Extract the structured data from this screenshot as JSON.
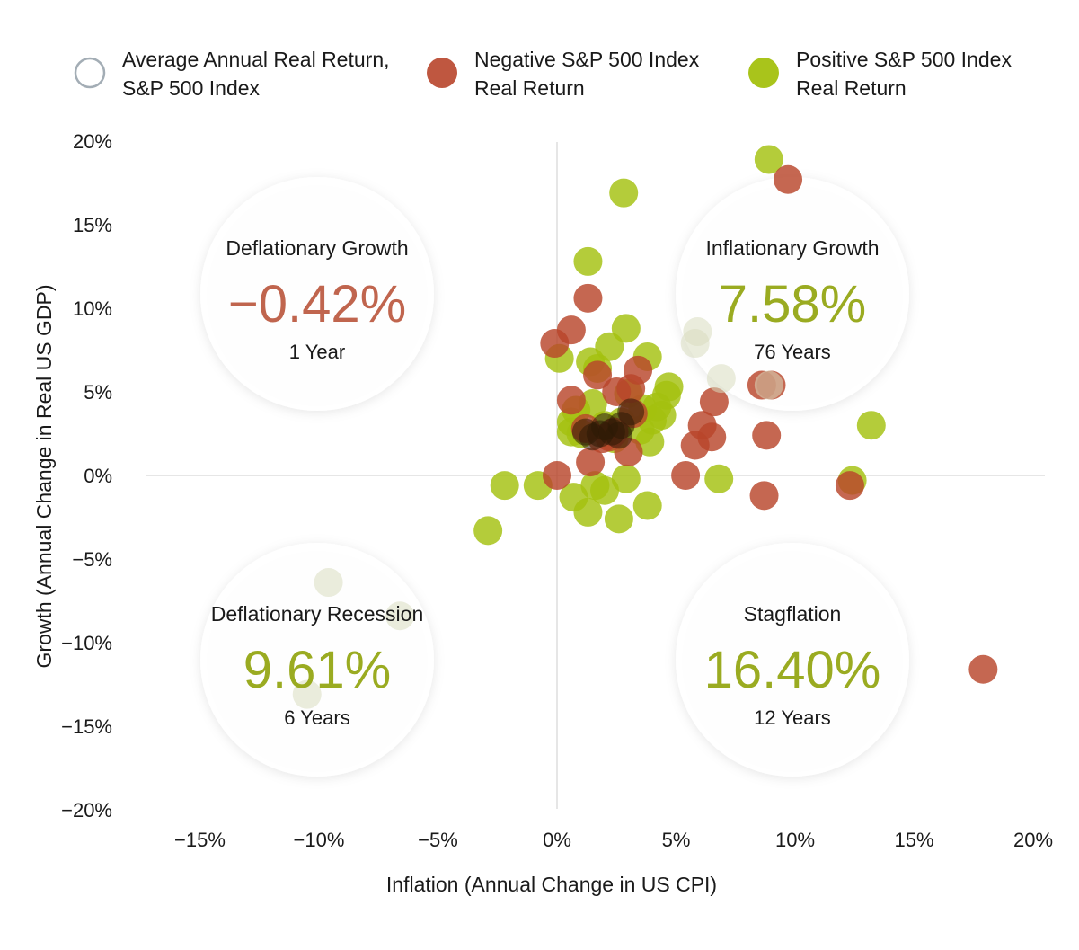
{
  "colors": {
    "negative": "#b8452b",
    "positive": "#a4c10f",
    "average_outline": "#a3adb5",
    "axis": "#cccccc",
    "negative_text": "#c0654e",
    "positive_text": "#9aab21"
  },
  "legend": [
    {
      "line1": "Average Annual Real Return,",
      "line2": "S&P 500 Index",
      "style": "outline"
    },
    {
      "line1": "Negative S&P 500 Index",
      "line2": "Real Return",
      "style": "negative"
    },
    {
      "line1": "Positive S&P 500 Index",
      "line2": "Real Return",
      "style": "positive"
    }
  ],
  "quadrants": [
    {
      "id": "deflationary-growth",
      "title": "Deflationary Growth",
      "value": "−0.42%",
      "years": "1 Year",
      "sign": "negative"
    },
    {
      "id": "inflationary-growth",
      "title": "Inflationary Growth",
      "value": "7.58%",
      "years": "76 Years",
      "sign": "positive"
    },
    {
      "id": "deflationary-recession",
      "title": "Deflationary Recession",
      "value": "9.61%",
      "years": "6 Years",
      "sign": "positive"
    },
    {
      "id": "stagflation",
      "title": "Stagflation",
      "value": "16.40%",
      "years": "12 Years",
      "sign": "positive"
    }
  ],
  "chart_data": {
    "type": "scatter",
    "xlabel": "Inflation (Annual Change in US CPI)",
    "ylabel": "Growth (Annual Change in Real US GDP)",
    "xlim": [
      -17,
      21
    ],
    "ylim": [
      -20,
      20
    ],
    "x_ticks": [
      -15,
      -10,
      -5,
      0,
      5,
      10,
      15,
      20
    ],
    "x_tick_labels": [
      "−15%",
      "−10%",
      "−5%",
      "0%",
      "5%",
      "10%",
      "15%",
      "20%"
    ],
    "y_ticks": [
      20,
      15,
      10,
      5,
      0,
      -5,
      -10,
      -15,
      -20
    ],
    "y_tick_labels": [
      "20%",
      "15%",
      "10%",
      "5%",
      "0%",
      "−5%",
      "−10%",
      "−15%",
      "−20%"
    ],
    "series": [
      {
        "name": "Negative S&P 500 Index Real Return",
        "points": [
          [
            9.7,
            17.7
          ],
          [
            1.3,
            10.6
          ],
          [
            0.6,
            8.7
          ],
          [
            -0.1,
            7.9
          ],
          [
            1.7,
            6.0
          ],
          [
            3.4,
            6.3
          ],
          [
            8.6,
            5.4
          ],
          [
            9.0,
            5.4
          ],
          [
            6.6,
            4.4
          ],
          [
            0.6,
            4.5
          ],
          [
            3.1,
            5.2
          ],
          [
            2.5,
            5.0
          ],
          [
            6.1,
            3.0
          ],
          [
            6.5,
            2.3
          ],
          [
            5.8,
            1.8
          ],
          [
            8.8,
            2.4
          ],
          [
            1.4,
            0.8
          ],
          [
            3.0,
            1.4
          ],
          [
            0.0,
            0.0
          ],
          [
            5.4,
            0.0
          ],
          [
            8.7,
            -1.2
          ],
          [
            12.3,
            -0.6
          ],
          [
            17.9,
            -11.6
          ],
          [
            1.9,
            2.2
          ],
          [
            2.4,
            2.6
          ],
          [
            3.2,
            3.7
          ],
          [
            1.2,
            2.8
          ],
          [
            2.2,
            2.3
          ]
        ]
      },
      {
        "name": "Positive S&P 500 Index Real Return",
        "points": [
          [
            8.9,
            18.9
          ],
          [
            2.8,
            16.9
          ],
          [
            1.3,
            12.8
          ],
          [
            2.9,
            8.8
          ],
          [
            2.2,
            7.7
          ],
          [
            3.8,
            7.1
          ],
          [
            1.4,
            6.8
          ],
          [
            0.1,
            7.0
          ],
          [
            1.7,
            6.4
          ],
          [
            4.7,
            5.3
          ],
          [
            4.6,
            4.8
          ],
          [
            4.2,
            4.1
          ],
          [
            4.4,
            3.6
          ],
          [
            3.6,
            4.0
          ],
          [
            3.0,
            4.9
          ],
          [
            1.5,
            4.3
          ],
          [
            0.8,
            3.9
          ],
          [
            0.6,
            3.2
          ],
          [
            0.6,
            2.6
          ],
          [
            1.0,
            2.5
          ],
          [
            3.5,
            2.7
          ],
          [
            3.9,
            2.0
          ],
          [
            2.4,
            2.2
          ],
          [
            13.2,
            3.0
          ],
          [
            12.4,
            -0.3
          ],
          [
            6.8,
            -0.2
          ],
          [
            3.8,
            -1.8
          ],
          [
            2.9,
            -0.2
          ],
          [
            2.0,
            -0.9
          ],
          [
            1.6,
            -0.6
          ],
          [
            0.7,
            -1.3
          ],
          [
            1.3,
            -2.2
          ],
          [
            2.6,
            -2.6
          ],
          [
            -0.8,
            -0.6
          ],
          [
            -2.2,
            -0.6
          ],
          [
            -2.9,
            -3.3
          ],
          [
            2.0,
            3.0
          ],
          [
            2.7,
            3.2
          ],
          [
            4.0,
            3.3
          ]
        ]
      },
      {
        "name": "Average Annual Real Return, S&P 500 Index",
        "points": [
          [
            5.9,
            8.6
          ],
          [
            5.8,
            7.9
          ],
          [
            6.9,
            5.8
          ],
          [
            8.9,
            5.4
          ],
          [
            -9.6,
            -6.4
          ],
          [
            -6.6,
            -8.4
          ],
          [
            -10.5,
            -13.1
          ]
        ]
      }
    ]
  }
}
